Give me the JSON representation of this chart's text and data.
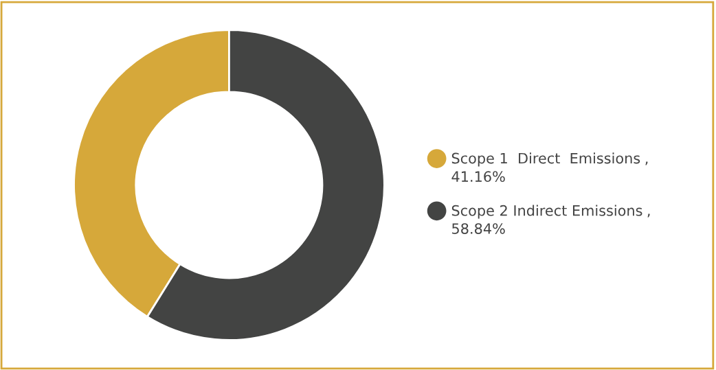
{
  "chart_data": {
    "type": "donut",
    "categories": [
      "Scope 1  Direct  Emissions",
      "Scope 2 Indirect Emissions"
    ],
    "values": [
      41.16,
      58.84
    ],
    "value_labels": [
      "41.16%",
      "58.84%"
    ],
    "colors": [
      "#d6a83a",
      "#434443"
    ],
    "legend": "right",
    "annotations": [
      ",",
      ","
    ]
  }
}
